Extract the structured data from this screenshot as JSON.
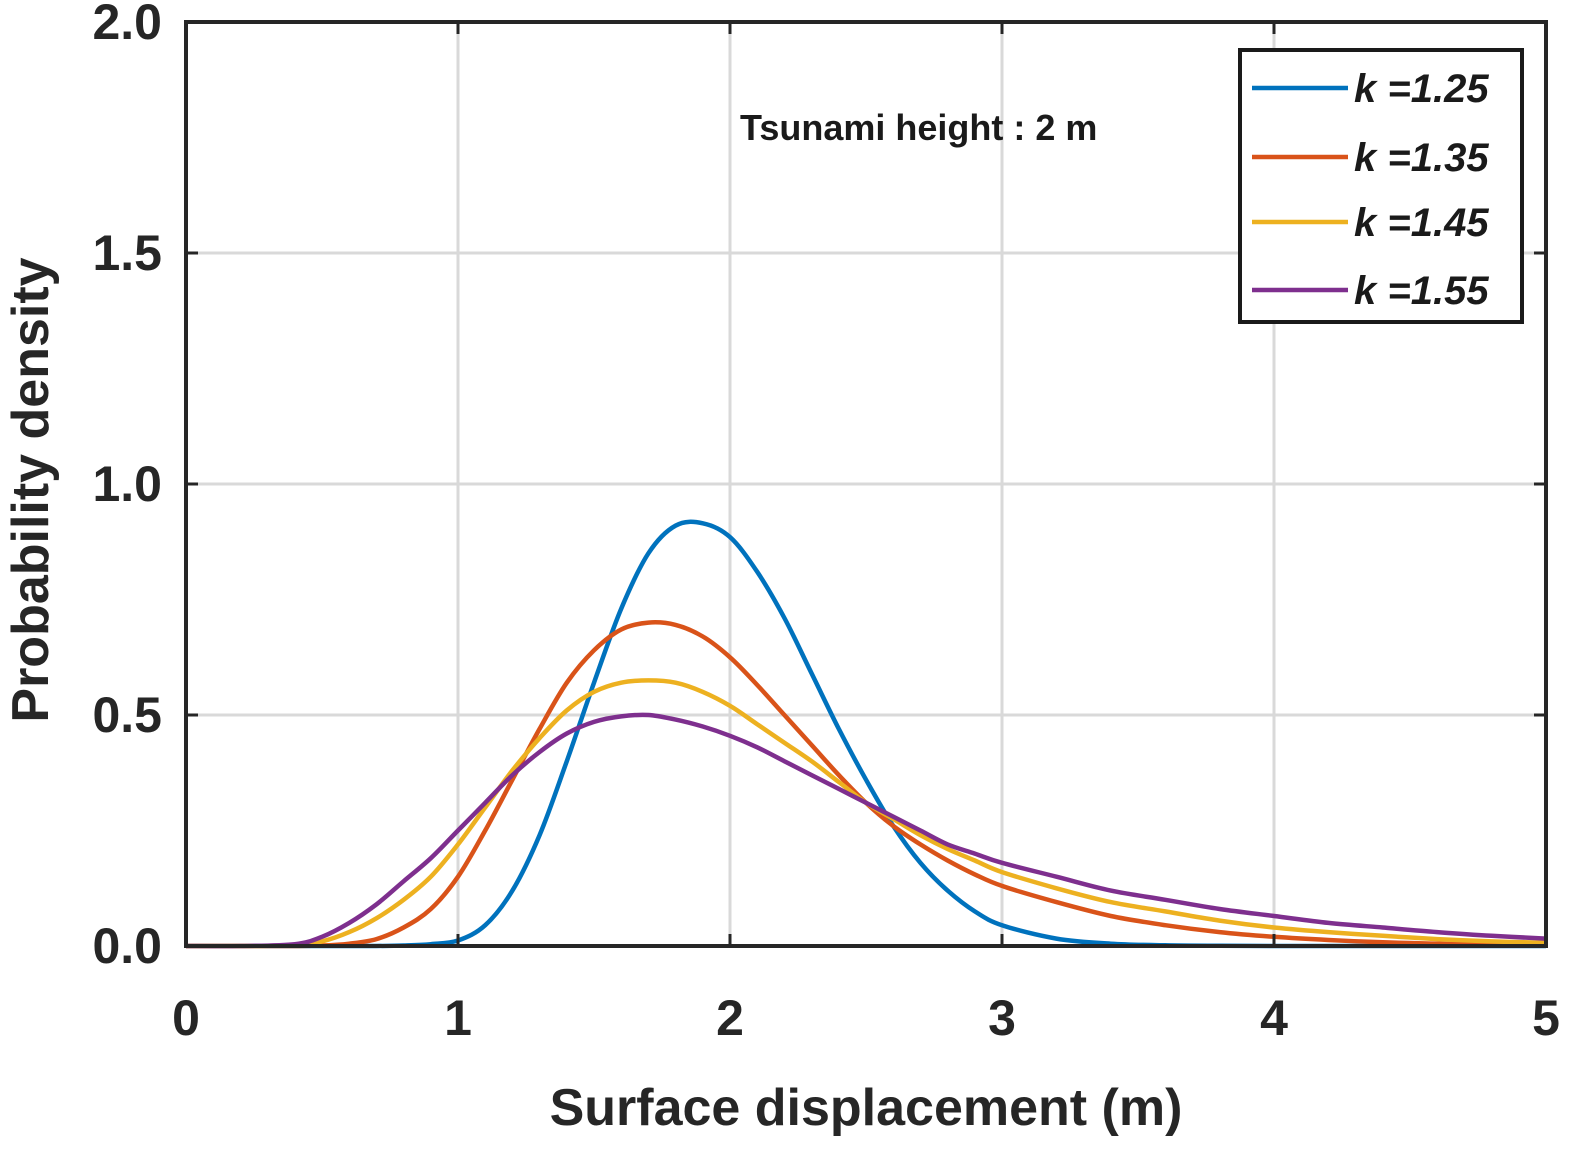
{
  "chart_data": {
    "type": "line",
    "title": "",
    "xlabel": "Surface displacement (m)",
    "ylabel": "Probability density",
    "xlim": [
      0,
      5
    ],
    "ylim": [
      0,
      2.0
    ],
    "xticks": [
      0,
      1,
      2,
      3,
      4,
      5
    ],
    "xtick_labels": [
      "0",
      "1",
      "2",
      "3",
      "4",
      "5"
    ],
    "yticks": [
      0,
      0.5,
      1.0,
      1.5,
      2.0
    ],
    "ytick_labels": [
      "0.0",
      "0.5",
      "1.0",
      "1.5",
      "2.0"
    ],
    "grid": true,
    "legend_position": "top-right",
    "annotation": "Tsunami height : 2 m",
    "x": [
      0.0,
      0.2,
      0.4,
      0.5,
      0.6,
      0.7,
      0.8,
      0.9,
      1.0,
      1.1,
      1.2,
      1.3,
      1.4,
      1.5,
      1.6,
      1.7,
      1.8,
      1.9,
      2.0,
      2.1,
      2.2,
      2.3,
      2.4,
      2.5,
      2.6,
      2.7,
      2.8,
      2.9,
      3.0,
      3.2,
      3.4,
      3.6,
      3.8,
      4.0,
      4.2,
      4.4,
      4.6,
      4.8,
      5.0
    ],
    "series": [
      {
        "name": "k =1.25",
        "label": "k =1.25",
        "color": "#0072BD",
        "values": [
          0,
          0,
          0,
          0,
          0,
          0,
          0.001,
          0.004,
          0.012,
          0.045,
          0.12,
          0.24,
          0.4,
          0.57,
          0.73,
          0.85,
          0.91,
          0.915,
          0.885,
          0.81,
          0.71,
          0.59,
          0.47,
          0.36,
          0.26,
          0.18,
          0.12,
          0.075,
          0.045,
          0.016,
          0.005,
          0.0015,
          0.0005,
          0,
          0,
          0,
          0,
          0,
          0
        ]
      },
      {
        "name": "k =1.35",
        "label": "k =1.35",
        "color": "#D95319",
        "values": [
          0,
          0,
          0,
          0.001,
          0.005,
          0.015,
          0.04,
          0.08,
          0.15,
          0.25,
          0.36,
          0.47,
          0.57,
          0.64,
          0.685,
          0.7,
          0.695,
          0.67,
          0.625,
          0.565,
          0.5,
          0.435,
          0.37,
          0.31,
          0.26,
          0.22,
          0.185,
          0.155,
          0.13,
          0.095,
          0.065,
          0.045,
          0.03,
          0.02,
          0.013,
          0.008,
          0.005,
          0.003,
          0.002
        ]
      },
      {
        "name": "k =1.45",
        "label": "k =1.45",
        "color": "#EDB120",
        "values": [
          0,
          0,
          0.002,
          0.01,
          0.03,
          0.06,
          0.1,
          0.15,
          0.22,
          0.3,
          0.38,
          0.45,
          0.51,
          0.55,
          0.57,
          0.575,
          0.57,
          0.55,
          0.52,
          0.48,
          0.44,
          0.4,
          0.355,
          0.31,
          0.275,
          0.24,
          0.21,
          0.185,
          0.16,
          0.125,
          0.095,
          0.075,
          0.055,
          0.04,
          0.03,
          0.022,
          0.015,
          0.01,
          0.007
        ]
      },
      {
        "name": "k =1.55",
        "label": "k =1.55",
        "color": "#7E2F8E",
        "values": [
          0,
          0,
          0.004,
          0.02,
          0.05,
          0.09,
          0.14,
          0.19,
          0.25,
          0.31,
          0.37,
          0.42,
          0.46,
          0.485,
          0.497,
          0.5,
          0.49,
          0.475,
          0.455,
          0.43,
          0.4,
          0.37,
          0.34,
          0.31,
          0.28,
          0.25,
          0.22,
          0.2,
          0.18,
          0.15,
          0.12,
          0.1,
          0.08,
          0.065,
          0.05,
          0.04,
          0.03,
          0.022,
          0.016
        ]
      }
    ]
  }
}
